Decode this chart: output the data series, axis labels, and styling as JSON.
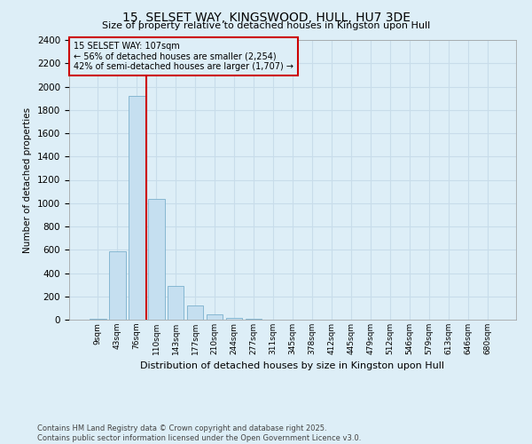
{
  "title": "15, SELSET WAY, KINGSWOOD, HULL, HU7 3DE",
  "subtitle": "Size of property relative to detached houses in Kingston upon Hull",
  "xlabel": "Distribution of detached houses by size in Kingston upon Hull",
  "ylabel": "Number of detached properties",
  "footer": "Contains HM Land Registry data © Crown copyright and database right 2025.\nContains public sector information licensed under the Open Government Licence v3.0.",
  "categories": [
    "9sqm",
    "43sqm",
    "76sqm",
    "110sqm",
    "143sqm",
    "177sqm",
    "210sqm",
    "244sqm",
    "277sqm",
    "311sqm",
    "345sqm",
    "378sqm",
    "412sqm",
    "445sqm",
    "479sqm",
    "512sqm",
    "546sqm",
    "579sqm",
    "613sqm",
    "646sqm",
    "680sqm"
  ],
  "bar_values": [
    10,
    590,
    1920,
    1040,
    290,
    120,
    48,
    18,
    5,
    2,
    1,
    0,
    0,
    0,
    0,
    0,
    0,
    0,
    0,
    0,
    0
  ],
  "bar_color": "#c5dff0",
  "bar_edge_color": "#7ab0cc",
  "grid_color": "#c8dcea",
  "background_color": "#ddeef7",
  "vline_color": "#cc0000",
  "annotation_text": "15 SELSET WAY: 107sqm\n← 56% of detached houses are smaller (2,254)\n42% of semi-detached houses are larger (1,707) →",
  "annotation_box_edge_color": "#cc0000",
  "annotation_box_bg": "#ddeef7",
  "ylim": [
    0,
    2400
  ],
  "yticks": [
    0,
    200,
    400,
    600,
    800,
    1000,
    1200,
    1400,
    1600,
    1800,
    2000,
    2200,
    2400
  ]
}
